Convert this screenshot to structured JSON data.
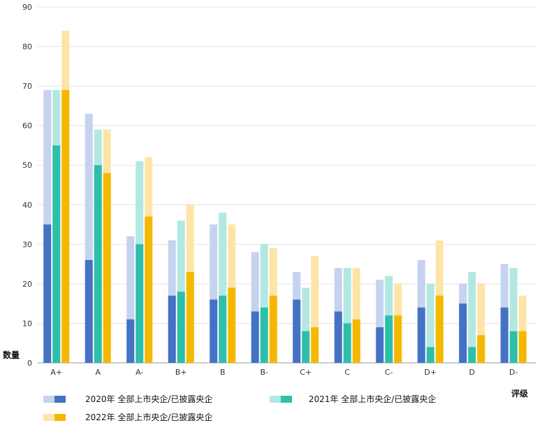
{
  "chart_data": {
    "type": "bar",
    "title": "",
    "xlabel": "评级",
    "ylabel": "数量",
    "ylim": [
      0,
      90
    ],
    "yticks": [
      0,
      10,
      20,
      30,
      40,
      50,
      60,
      70,
      80,
      90
    ],
    "categories": [
      "A+",
      "A",
      "A-",
      "B+",
      "B",
      "B-",
      "C+",
      "C",
      "C-",
      "D+",
      "D",
      "D-"
    ],
    "grid": true,
    "legend_position": "bottom",
    "series": [
      {
        "name": "2020年 全部上市央企/已披露央企",
        "total": [
          69,
          63,
          32,
          31,
          35,
          28,
          23,
          24,
          21,
          26,
          20,
          25
        ],
        "disclosed": [
          35,
          26,
          11,
          17,
          16,
          13,
          16,
          13,
          9,
          14,
          15,
          14
        ],
        "color_total": "#c5d3ef",
        "color_disclosed": "#4472c4"
      },
      {
        "name": "2021年 全部上市央企/已披露央企",
        "total": [
          69,
          59,
          51,
          36,
          38,
          30,
          19,
          24,
          22,
          20,
          23,
          24
        ],
        "disclosed": [
          55,
          50,
          30,
          18,
          17,
          14,
          8,
          10,
          12,
          4,
          4,
          8
        ],
        "color_total": "#b3e8e2",
        "color_disclosed": "#2ebfaa"
      },
      {
        "name": "2022年 全部上市央企/已披露央企",
        "total": [
          84,
          59,
          52,
          40,
          35,
          29,
          27,
          24,
          20,
          31,
          20,
          17
        ],
        "disclosed": [
          69,
          48,
          37,
          23,
          19,
          17,
          9,
          11,
          12,
          17,
          7,
          8
        ],
        "color_total": "#fde5a8",
        "color_disclosed": "#f5b800"
      }
    ]
  }
}
